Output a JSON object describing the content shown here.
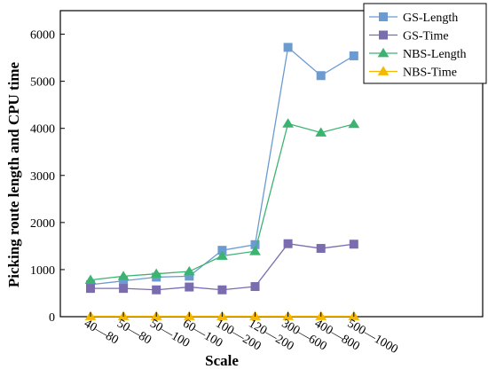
{
  "chart_data": {
    "type": "line",
    "title": "",
    "xlabel": "Scale",
    "ylabel": "Picking route length and CPU time",
    "categories": [
      "40—80",
      "50—80",
      "50—100",
      "60—100",
      "100—200",
      "120—200",
      "300—600",
      "400—800",
      "500—1000"
    ],
    "ylim": [
      0,
      6500
    ],
    "yticks": [
      0,
      1000,
      2000,
      3000,
      4000,
      5000,
      6000
    ],
    "grid": false,
    "legend_position": "top-right",
    "series": [
      {
        "name": "GS-Length",
        "color": "#6b9bd1",
        "marker": "square",
        "values": [
          680,
          760,
          840,
          860,
          1410,
          1530,
          5720,
          5120,
          5540
        ]
      },
      {
        "name": "GS-Time",
        "color": "#7b6cb0",
        "marker": "square",
        "values": [
          600,
          600,
          570,
          630,
          570,
          640,
          1550,
          1450,
          1540
        ]
      },
      {
        "name": "NBS-Length",
        "color": "#3cb371",
        "marker": "triangle",
        "values": [
          780,
          860,
          910,
          960,
          1290,
          1390,
          4100,
          3910,
          4090
        ]
      },
      {
        "name": "NBS-Time",
        "color": "#f5b800",
        "marker": "triangle",
        "values": [
          10,
          10,
          10,
          10,
          10,
          10,
          10,
          10,
          10
        ]
      }
    ]
  }
}
